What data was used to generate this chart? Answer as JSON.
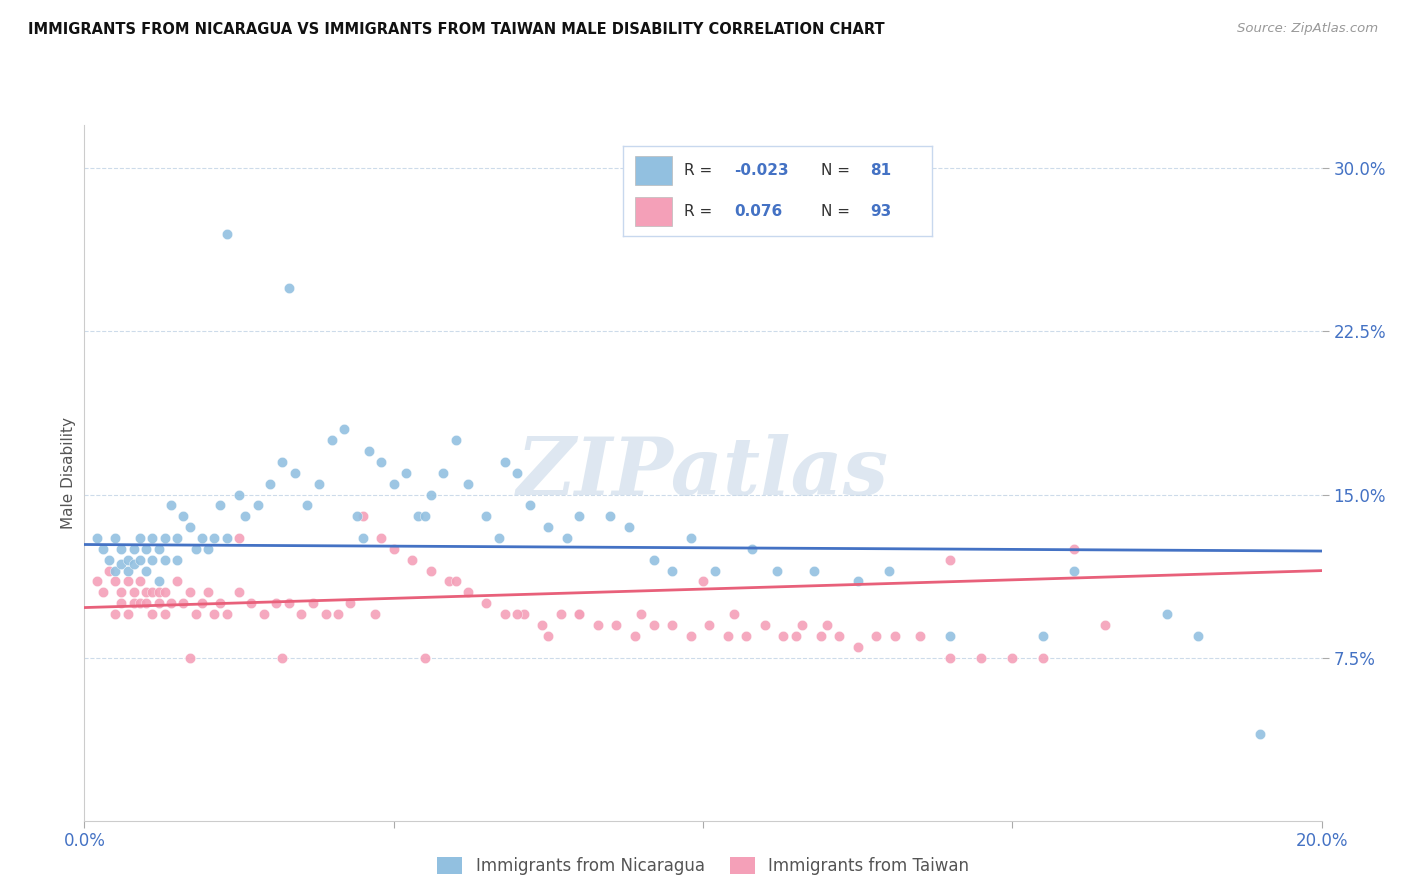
{
  "title": "IMMIGRANTS FROM NICARAGUA VS IMMIGRANTS FROM TAIWAN MALE DISABILITY CORRELATION CHART",
  "source": "Source: ZipAtlas.com",
  "ylabel": "Male Disability",
  "xlim": [
    0.0,
    0.2
  ],
  "ylim": [
    0.0,
    0.32
  ],
  "xticks": [
    0.0,
    0.05,
    0.1,
    0.15,
    0.2
  ],
  "xtick_labels": [
    "0.0%",
    "",
    "",
    "",
    "20.0%"
  ],
  "yticks": [
    0.075,
    0.15,
    0.225,
    0.3
  ],
  "ytick_labels": [
    "7.5%",
    "15.0%",
    "22.5%",
    "30.0%"
  ],
  "watermark": "ZIPatlas",
  "nicaragua_color": "#92c0e0",
  "taiwan_color": "#f4a0b8",
  "nicaragua_line_color": "#4472c4",
  "taiwan_line_color": "#e8607a",
  "nicaragua_R": -0.023,
  "nicaragua_N": 81,
  "taiwan_R": 0.076,
  "taiwan_N": 93,
  "nic_line_start": 0.127,
  "nic_line_end": 0.124,
  "tai_line_start": 0.098,
  "tai_line_end": 0.115,
  "nicaragua_scatter_x": [
    0.002,
    0.003,
    0.004,
    0.005,
    0.005,
    0.006,
    0.006,
    0.007,
    0.007,
    0.008,
    0.008,
    0.009,
    0.009,
    0.01,
    0.01,
    0.011,
    0.011,
    0.012,
    0.012,
    0.013,
    0.013,
    0.014,
    0.015,
    0.015,
    0.016,
    0.017,
    0.018,
    0.019,
    0.02,
    0.021,
    0.022,
    0.023,
    0.025,
    0.026,
    0.028,
    0.03,
    0.032,
    0.034,
    0.036,
    0.038,
    0.04,
    0.042,
    0.044,
    0.046,
    0.048,
    0.05,
    0.052,
    0.054,
    0.056,
    0.058,
    0.06,
    0.062,
    0.065,
    0.068,
    0.07,
    0.072,
    0.075,
    0.078,
    0.08,
    0.085,
    0.088,
    0.092,
    0.095,
    0.098,
    0.102,
    0.108,
    0.112,
    0.118,
    0.125,
    0.13,
    0.14,
    0.155,
    0.16,
    0.175,
    0.18,
    0.19,
    0.023,
    0.033,
    0.045,
    0.055,
    0.067
  ],
  "nicaragua_scatter_y": [
    0.13,
    0.125,
    0.12,
    0.115,
    0.13,
    0.125,
    0.118,
    0.12,
    0.115,
    0.125,
    0.118,
    0.12,
    0.13,
    0.125,
    0.115,
    0.12,
    0.13,
    0.125,
    0.11,
    0.12,
    0.13,
    0.145,
    0.13,
    0.12,
    0.14,
    0.135,
    0.125,
    0.13,
    0.125,
    0.13,
    0.145,
    0.13,
    0.15,
    0.14,
    0.145,
    0.155,
    0.165,
    0.16,
    0.145,
    0.155,
    0.175,
    0.18,
    0.14,
    0.17,
    0.165,
    0.155,
    0.16,
    0.14,
    0.15,
    0.16,
    0.175,
    0.155,
    0.14,
    0.165,
    0.16,
    0.145,
    0.135,
    0.13,
    0.14,
    0.14,
    0.135,
    0.12,
    0.115,
    0.13,
    0.115,
    0.125,
    0.115,
    0.115,
    0.11,
    0.115,
    0.085,
    0.085,
    0.115,
    0.095,
    0.085,
    0.04,
    0.27,
    0.245,
    0.13,
    0.14,
    0.13
  ],
  "taiwan_scatter_x": [
    0.002,
    0.003,
    0.004,
    0.005,
    0.005,
    0.006,
    0.006,
    0.007,
    0.007,
    0.008,
    0.008,
    0.009,
    0.009,
    0.01,
    0.01,
    0.011,
    0.011,
    0.012,
    0.012,
    0.013,
    0.013,
    0.014,
    0.015,
    0.016,
    0.017,
    0.018,
    0.019,
    0.02,
    0.021,
    0.022,
    0.023,
    0.025,
    0.027,
    0.029,
    0.031,
    0.033,
    0.035,
    0.037,
    0.039,
    0.041,
    0.043,
    0.045,
    0.047,
    0.05,
    0.053,
    0.056,
    0.059,
    0.062,
    0.065,
    0.068,
    0.071,
    0.074,
    0.077,
    0.08,
    0.083,
    0.086,
    0.089,
    0.092,
    0.095,
    0.098,
    0.101,
    0.104,
    0.107,
    0.11,
    0.113,
    0.116,
    0.119,
    0.122,
    0.125,
    0.128,
    0.131,
    0.135,
    0.14,
    0.145,
    0.15,
    0.16,
    0.165,
    0.14,
    0.06,
    0.1,
    0.155,
    0.08,
    0.115,
    0.025,
    0.048,
    0.07,
    0.09,
    0.105,
    0.12,
    0.075,
    0.032,
    0.017,
    0.055
  ],
  "taiwan_scatter_y": [
    0.11,
    0.105,
    0.115,
    0.11,
    0.095,
    0.105,
    0.1,
    0.11,
    0.095,
    0.105,
    0.1,
    0.11,
    0.1,
    0.105,
    0.1,
    0.105,
    0.095,
    0.105,
    0.1,
    0.105,
    0.095,
    0.1,
    0.11,
    0.1,
    0.105,
    0.095,
    0.1,
    0.105,
    0.095,
    0.1,
    0.095,
    0.105,
    0.1,
    0.095,
    0.1,
    0.1,
    0.095,
    0.1,
    0.095,
    0.095,
    0.1,
    0.14,
    0.095,
    0.125,
    0.12,
    0.115,
    0.11,
    0.105,
    0.1,
    0.095,
    0.095,
    0.09,
    0.095,
    0.095,
    0.09,
    0.09,
    0.085,
    0.09,
    0.09,
    0.085,
    0.09,
    0.085,
    0.085,
    0.09,
    0.085,
    0.09,
    0.085,
    0.085,
    0.08,
    0.085,
    0.085,
    0.085,
    0.075,
    0.075,
    0.075,
    0.125,
    0.09,
    0.12,
    0.11,
    0.11,
    0.075,
    0.095,
    0.085,
    0.13,
    0.13,
    0.095,
    0.095,
    0.095,
    0.09,
    0.085,
    0.075,
    0.075,
    0.075
  ]
}
